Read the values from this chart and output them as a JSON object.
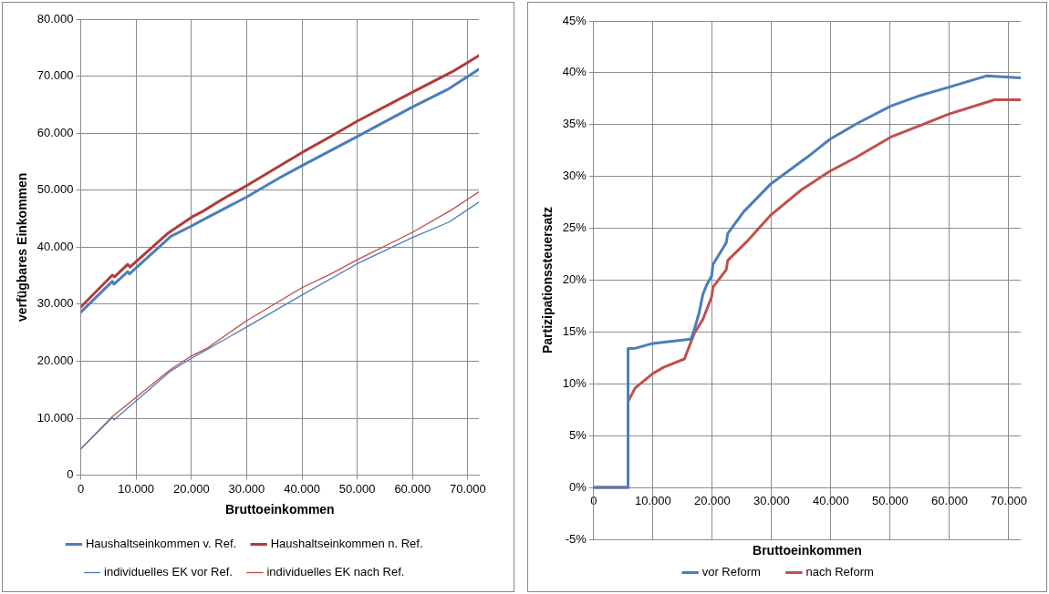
{
  "chart_data": [
    {
      "type": "line",
      "xlabel": "Bruttoeinkommen",
      "ylabel": "verfügbares Einkommen",
      "xlim": [
        0,
        72000
      ],
      "ylim": [
        0,
        80000
      ],
      "xticks": [
        0,
        {
          "value": 10000,
          "label": "10.000"
        },
        {
          "value": 20000,
          "label": "20.000"
        },
        {
          "value": 30000,
          "label": "30.000"
        },
        {
          "value": 40000,
          "label": "40.000"
        },
        {
          "value": 50000,
          "label": "50.000"
        },
        {
          "value": 60000,
          "label": "60.000"
        },
        {
          "value": 70000,
          "label": "70.000"
        }
      ],
      "yticks": [
        0,
        {
          "value": 10000,
          "label": "10.000"
        },
        {
          "value": 20000,
          "label": "20.000"
        },
        {
          "value": 30000,
          "label": "30.000"
        },
        {
          "value": 40000,
          "label": "40.000"
        },
        {
          "value": 50000,
          "label": "50.000"
        },
        {
          "value": 60000,
          "label": "60.000"
        },
        {
          "value": 70000,
          "label": "70.000"
        },
        {
          "value": 80000,
          "label": "80.000"
        }
      ],
      "grid": true,
      "legend": "bottom",
      "marker": "none",
      "line_style": "solid",
      "series": [
        {
          "name": "Haushaltseinkommen v. Ref.",
          "color": "#4a7ebb",
          "x": [
            0,
            5700,
            6000,
            8500,
            8800,
            16300,
            19800,
            22700,
            30000,
            36000,
            40000,
            50000,
            60000,
            66600,
            72000
          ],
          "values": [
            28600,
            34000,
            33500,
            35700,
            35300,
            41900,
            43600,
            45100,
            48800,
            52200,
            54300,
            59400,
            64600,
            67800,
            71200
          ]
        },
        {
          "name": "Haushaltseinkommen n. Ref.",
          "color": "#b03c3a",
          "x": [
            0,
            5700,
            6100,
            8500,
            8900,
            15700,
            20100,
            22100,
            25600,
            30000,
            40000,
            45000,
            50000,
            60000,
            67600,
            72000
          ],
          "values": [
            29500,
            35100,
            34800,
            37000,
            36500,
            42400,
            45300,
            46300,
            48400,
            50800,
            56600,
            59300,
            62100,
            67200,
            71000,
            73600
          ]
        },
        {
          "name": "individuelles EK vor Ref.",
          "color": "#4a7ebb",
          "x": [
            0,
            5700,
            6000,
            16300,
            19800,
            22400,
            30000,
            40000,
            50000,
            60000,
            66600,
            72000
          ],
          "values": [
            4600,
            10100,
            9700,
            18300,
            20400,
            21800,
            26000,
            31600,
            37100,
            41700,
            44400,
            47900
          ]
        },
        {
          "name": "individuelles EK nach Ref.",
          "color": "#be4b48",
          "x": [
            0,
            5700,
            16300,
            19800,
            22700,
            30000,
            40000,
            45000,
            50000,
            60000,
            67000,
            72000
          ],
          "values": [
            4600,
            10300,
            18600,
            20800,
            22200,
            27100,
            32900,
            35200,
            37800,
            42600,
            46500,
            49700
          ]
        }
      ]
    },
    {
      "type": "line",
      "xlabel": "Bruttoeinkommen",
      "ylabel": "Partizipationssteuersatz",
      "xlim": [
        0,
        72000
      ],
      "ylim": [
        -5,
        45
      ],
      "xticks": [
        0,
        {
          "value": 10000,
          "label": "10.000"
        },
        {
          "value": 20000,
          "label": "20.000"
        },
        {
          "value": 30000,
          "label": "30.000"
        },
        {
          "value": 40000,
          "label": "40.000"
        },
        {
          "value": 50000,
          "label": "50.000"
        },
        {
          "value": 60000,
          "label": "60.000"
        },
        {
          "value": 70000,
          "label": "70.000"
        }
      ],
      "yticks": [
        {
          "value": -5,
          "label": "-5%"
        },
        {
          "value": 0,
          "label": "0%"
        },
        {
          "value": 5,
          "label": "5%"
        },
        {
          "value": 10,
          "label": "10%"
        },
        {
          "value": 15,
          "label": "15%"
        },
        {
          "value": 20,
          "label": "20%"
        },
        {
          "value": 25,
          "label": "25%"
        },
        {
          "value": 30,
          "label": "30%"
        },
        {
          "value": 35,
          "label": "35%"
        },
        {
          "value": 40,
          "label": "40%"
        },
        {
          "value": 45,
          "label": "45%"
        }
      ],
      "grid": true,
      "legend": "bottom",
      "marker": "none",
      "line_style": "solid",
      "series": [
        {
          "name": "vor Reform",
          "color": "#4a7ebb",
          "x": [
            0,
            5800,
            5800,
            6800,
            10000,
            13000,
            16400,
            17000,
            17800,
            18400,
            19100,
            19900,
            20100,
            22350,
            22600,
            25300,
            29900,
            36100,
            39850,
            44700,
            50100,
            55000,
            59800,
            66200,
            72000
          ],
          "values": [
            0,
            0,
            13.4,
            13.4,
            13.9,
            14.1,
            14.3,
            15.3,
            16.9,
            18.6,
            19.6,
            20.4,
            21.5,
            23.6,
            24.5,
            26.6,
            29.3,
            31.9,
            33.6,
            35.2,
            36.8,
            37.8,
            38.6,
            39.7,
            39.5
          ]
        },
        {
          "name": "nach Reform",
          "color": "#c0504d",
          "x": [
            0,
            5800,
            5800,
            7000,
            10000,
            11800,
            15300,
            17000,
            18400,
            19900,
            20100,
            22350,
            22600,
            25800,
            29900,
            35000,
            39800,
            44100,
            50100,
            59800,
            67600,
            72000
          ],
          "values": [
            0,
            0,
            8.3,
            9.6,
            11.0,
            11.6,
            12.4,
            14.9,
            16.2,
            18.4,
            19.3,
            21.0,
            21.9,
            23.7,
            26.3,
            28.7,
            30.5,
            31.8,
            33.8,
            36.0,
            37.4,
            37.4
          ]
        }
      ]
    }
  ]
}
